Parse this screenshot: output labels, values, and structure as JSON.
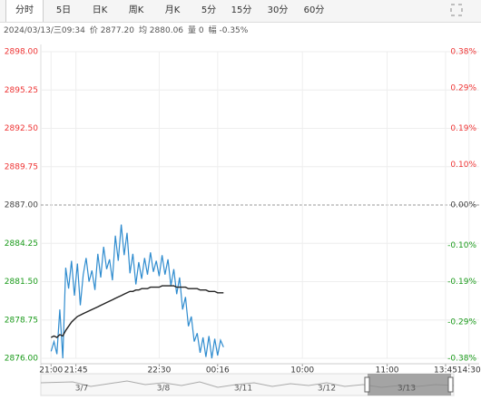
{
  "tabs": [
    "分时",
    "5日",
    "日K",
    "周K",
    "月K",
    "5分",
    "15分",
    "30分",
    "60分"
  ],
  "info": [
    "2024/03/13/三09:34",
    "价 2877.20",
    "均 2880.06",
    "量 0",
    "幅 -0.35%"
  ],
  "navigator": {
    "labels": [
      "3/7",
      "3/8",
      "3/11",
      "3/12",
      "3/13"
    ]
  },
  "chart_data": {
    "type": "line",
    "x": [
      7,
      9,
      11,
      13,
      15,
      17,
      19,
      21,
      23,
      25,
      27,
      29,
      31,
      33,
      35,
      37,
      39,
      41,
      43,
      45,
      47,
      49,
      51,
      53,
      55,
      57,
      59,
      61,
      63,
      65,
      67,
      69,
      71,
      73,
      75,
      77,
      79,
      81,
      83,
      85,
      87,
      89,
      91,
      93,
      95,
      97,
      99,
      101,
      103,
      105,
      107,
      109,
      111,
      113,
      115,
      117,
      119,
      121,
      123,
      125
    ],
    "series": [
      {
        "name": "价",
        "color": "#2f8ccf",
        "values": [
          2876.5,
          2877.2,
          2876.3,
          2879.5,
          2876.0,
          2882.5,
          2881.0,
          2883.0,
          2880.5,
          2882.8,
          2879.8,
          2882.0,
          2883.2,
          2881.5,
          2882.3,
          2880.9,
          2883.5,
          2881.8,
          2884.0,
          2882.4,
          2883.1,
          2881.6,
          2884.8,
          2883.0,
          2885.6,
          2883.4,
          2885.0,
          2882.1,
          2883.5,
          2881.3,
          2882.9,
          2881.7,
          2883.2,
          2882.0,
          2883.6,
          2882.2,
          2883.0,
          2881.9,
          2883.4,
          2882.0,
          2883.1,
          2881.2,
          2882.4,
          2880.6,
          2881.8,
          2879.5,
          2880.4,
          2878.3,
          2879.0,
          2877.2,
          2877.8,
          2876.4,
          2877.5,
          2876.1,
          2877.6,
          2876.0,
          2877.4,
          2876.2,
          2877.3,
          2876.8
        ]
      },
      {
        "name": "均",
        "color": "#222222",
        "values": [
          2877.5,
          2877.6,
          2877.5,
          2877.7,
          2877.6,
          2878.0,
          2878.3,
          2878.6,
          2878.8,
          2879.0,
          2879.1,
          2879.2,
          2879.3,
          2879.4,
          2879.5,
          2879.6,
          2879.7,
          2879.8,
          2879.9,
          2880.0,
          2880.1,
          2880.2,
          2880.3,
          2880.4,
          2880.5,
          2880.6,
          2880.7,
          2880.8,
          2880.8,
          2880.9,
          2880.9,
          2881.0,
          2881.0,
          2881.0,
          2881.1,
          2881.1,
          2881.1,
          2881.1,
          2881.2,
          2881.2,
          2881.2,
          2881.2,
          2881.2,
          2881.1,
          2881.1,
          2881.1,
          2881.1,
          2881.0,
          2881.0,
          2881.0,
          2881.0,
          2880.9,
          2880.9,
          2880.9,
          2880.8,
          2880.8,
          2880.8,
          2880.7,
          2880.7,
          2880.7
        ]
      }
    ],
    "xlim": [
      0,
      300
    ],
    "xticks": [
      {
        "value": 7,
        "label": "21:00"
      },
      {
        "value": 24,
        "label": "21:45"
      },
      {
        "value": 81,
        "label": "22:30"
      },
      {
        "value": 121,
        "label": "00:16"
      },
      {
        "value": 179,
        "label": "10:00"
      },
      {
        "value": 237,
        "label": "11:00"
      },
      {
        "value": 277,
        "label": "13:45"
      },
      {
        "value": 293,
        "label": "14:30"
      }
    ],
    "ylim": [
      2876,
      2898
    ],
    "yticks": [
      {
        "value": 2898,
        "label": "2898.00"
      },
      {
        "value": 2895.25,
        "label": "2895.25"
      },
      {
        "value": 2892.5,
        "label": "2892.50"
      },
      {
        "value": 2889.75,
        "label": "2889.75"
      },
      {
        "value": 2887,
        "label": "2887.00"
      },
      {
        "value": 2884.25,
        "label": "2884.25"
      },
      {
        "value": 2881.5,
        "label": "2881.50"
      },
      {
        "value": 2878.75,
        "label": "2878.75"
      },
      {
        "value": 2876,
        "label": "2876.00"
      }
    ],
    "y2lim": [
      -0.38,
      0.38
    ],
    "y2ticks": [
      {
        "value": 0.38,
        "label": "0.38%"
      },
      {
        "value": 0.29,
        "label": "0.29%"
      },
      {
        "value": 0.19,
        "label": "0.19%"
      },
      {
        "value": 0.1,
        "label": "0.10%"
      },
      {
        "value": 0,
        "label": "0.00%"
      },
      {
        "value": -0.1,
        "label": "-0.10%"
      },
      {
        "value": -0.19,
        "label": "-0.19%"
      },
      {
        "value": -0.29,
        "label": "-0.29%"
      },
      {
        "value": -0.38,
        "label": "-0.38%"
      }
    ],
    "grid": true
  }
}
